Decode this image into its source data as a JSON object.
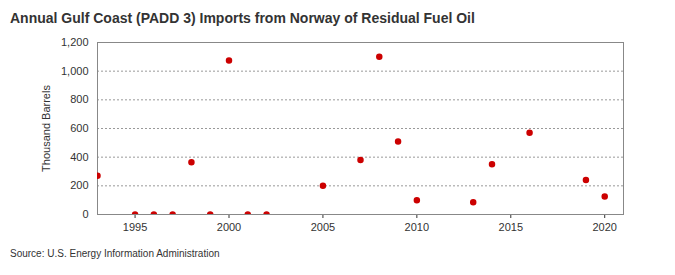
{
  "chart_data": {
    "type": "scatter",
    "title": "Annual Gulf Coast (PADD 3) Imports from Norway of Residual Fuel Oil",
    "y_label": "Thousand Barrels",
    "source": "Source: U.S. Energy Information Administration",
    "x": [
      1993,
      1995,
      1996,
      1997,
      1998,
      1999,
      2000,
      2001,
      2002,
      2005,
      2007,
      2008,
      2009,
      2010,
      2013,
      2014,
      2016,
      2019,
      2020
    ],
    "values": [
      270,
      0,
      0,
      0,
      365,
      0,
      1075,
      0,
      0,
      200,
      380,
      1100,
      510,
      100,
      85,
      350,
      570,
      240,
      125
    ],
    "color": "#cc0000",
    "marker": "circle",
    "xlim": [
      1993,
      2021
    ],
    "xticks": [
      1995,
      2000,
      2005,
      2010,
      2015,
      2020
    ],
    "ylim": [
      0,
      1200
    ],
    "yticks": [
      0,
      200,
      400,
      600,
      800,
      {
        "value": 1000,
        "label": "1,000"
      },
      {
        "value": 1200,
        "label": "1,200"
      }
    ],
    "grid": true
  }
}
